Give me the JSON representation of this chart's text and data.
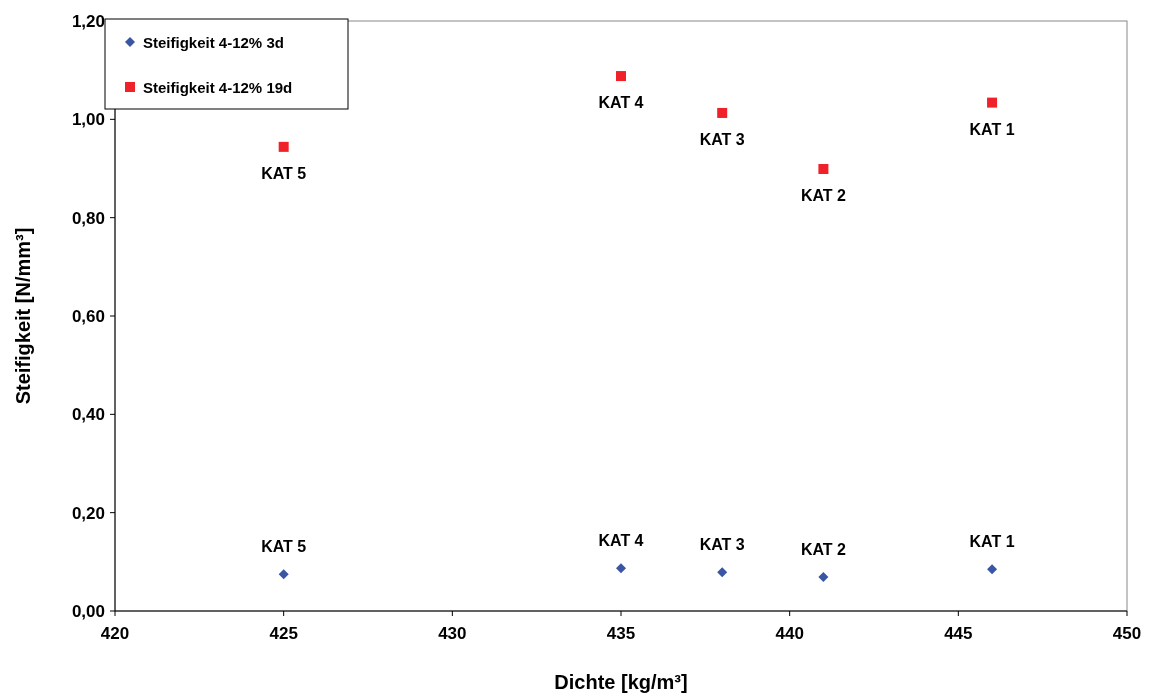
{
  "chart_data": {
    "type": "scatter",
    "xlabel": "Dichte [kg/m³]",
    "ylabel": "Steifigkeit [N/mm³]",
    "xlim": [
      420,
      450
    ],
    "xticks": [
      420,
      425,
      430,
      435,
      440,
      445,
      450
    ],
    "ylim": [
      0,
      1.2
    ],
    "yticks": [
      {
        "value": 0,
        "label": "0,00"
      },
      {
        "value": 0.2,
        "label": "0,20"
      },
      {
        "value": 0.4,
        "label": "0,40"
      },
      {
        "value": 0.6,
        "label": "0,60"
      },
      {
        "value": 0.8,
        "label": "0,80"
      },
      {
        "value": 1.0,
        "label": "1,00"
      },
      {
        "value": 1.2,
        "label": "1,20"
      }
    ],
    "legend": "top left",
    "grid": false,
    "series": [
      {
        "name": "Steifigkeit 4-12% 3d",
        "color": "#3a55a4",
        "marker": "diamond",
        "x": [
          425,
          435,
          438,
          441,
          446
        ],
        "values": [
          0.075,
          0.087,
          0.079,
          0.069,
          0.085
        ]
      },
      {
        "name": "Steifigkeit 4-12% 19d",
        "color": "#ee2228",
        "marker": "square",
        "x": [
          425,
          435,
          438,
          441,
          446
        ],
        "values": [
          0.944,
          1.088,
          1.013,
          0.899,
          1.034
        ]
      }
    ],
    "annotations": [
      {
        "text": "KAT 5",
        "x": 425,
        "y": 0.075
      },
      {
        "text": "KAT 4",
        "x": 435,
        "y": 0.087
      },
      {
        "text": "KAT 3",
        "x": 438,
        "y": 0.079
      },
      {
        "text": "KAT 2",
        "x": 441,
        "y": 0.069
      },
      {
        "text": "KAT 1",
        "x": 446,
        "y": 0.085
      },
      {
        "text": "KAT 5",
        "x": 425,
        "y": 0.944
      },
      {
        "text": "KAT 4",
        "x": 435,
        "y": 1.088
      },
      {
        "text": "KAT 3",
        "x": 438,
        "y": 1.013
      },
      {
        "text": "KAT 2",
        "x": 441,
        "y": 0.899
      },
      {
        "text": "KAT 1",
        "x": 446,
        "y": 1.034
      }
    ]
  }
}
